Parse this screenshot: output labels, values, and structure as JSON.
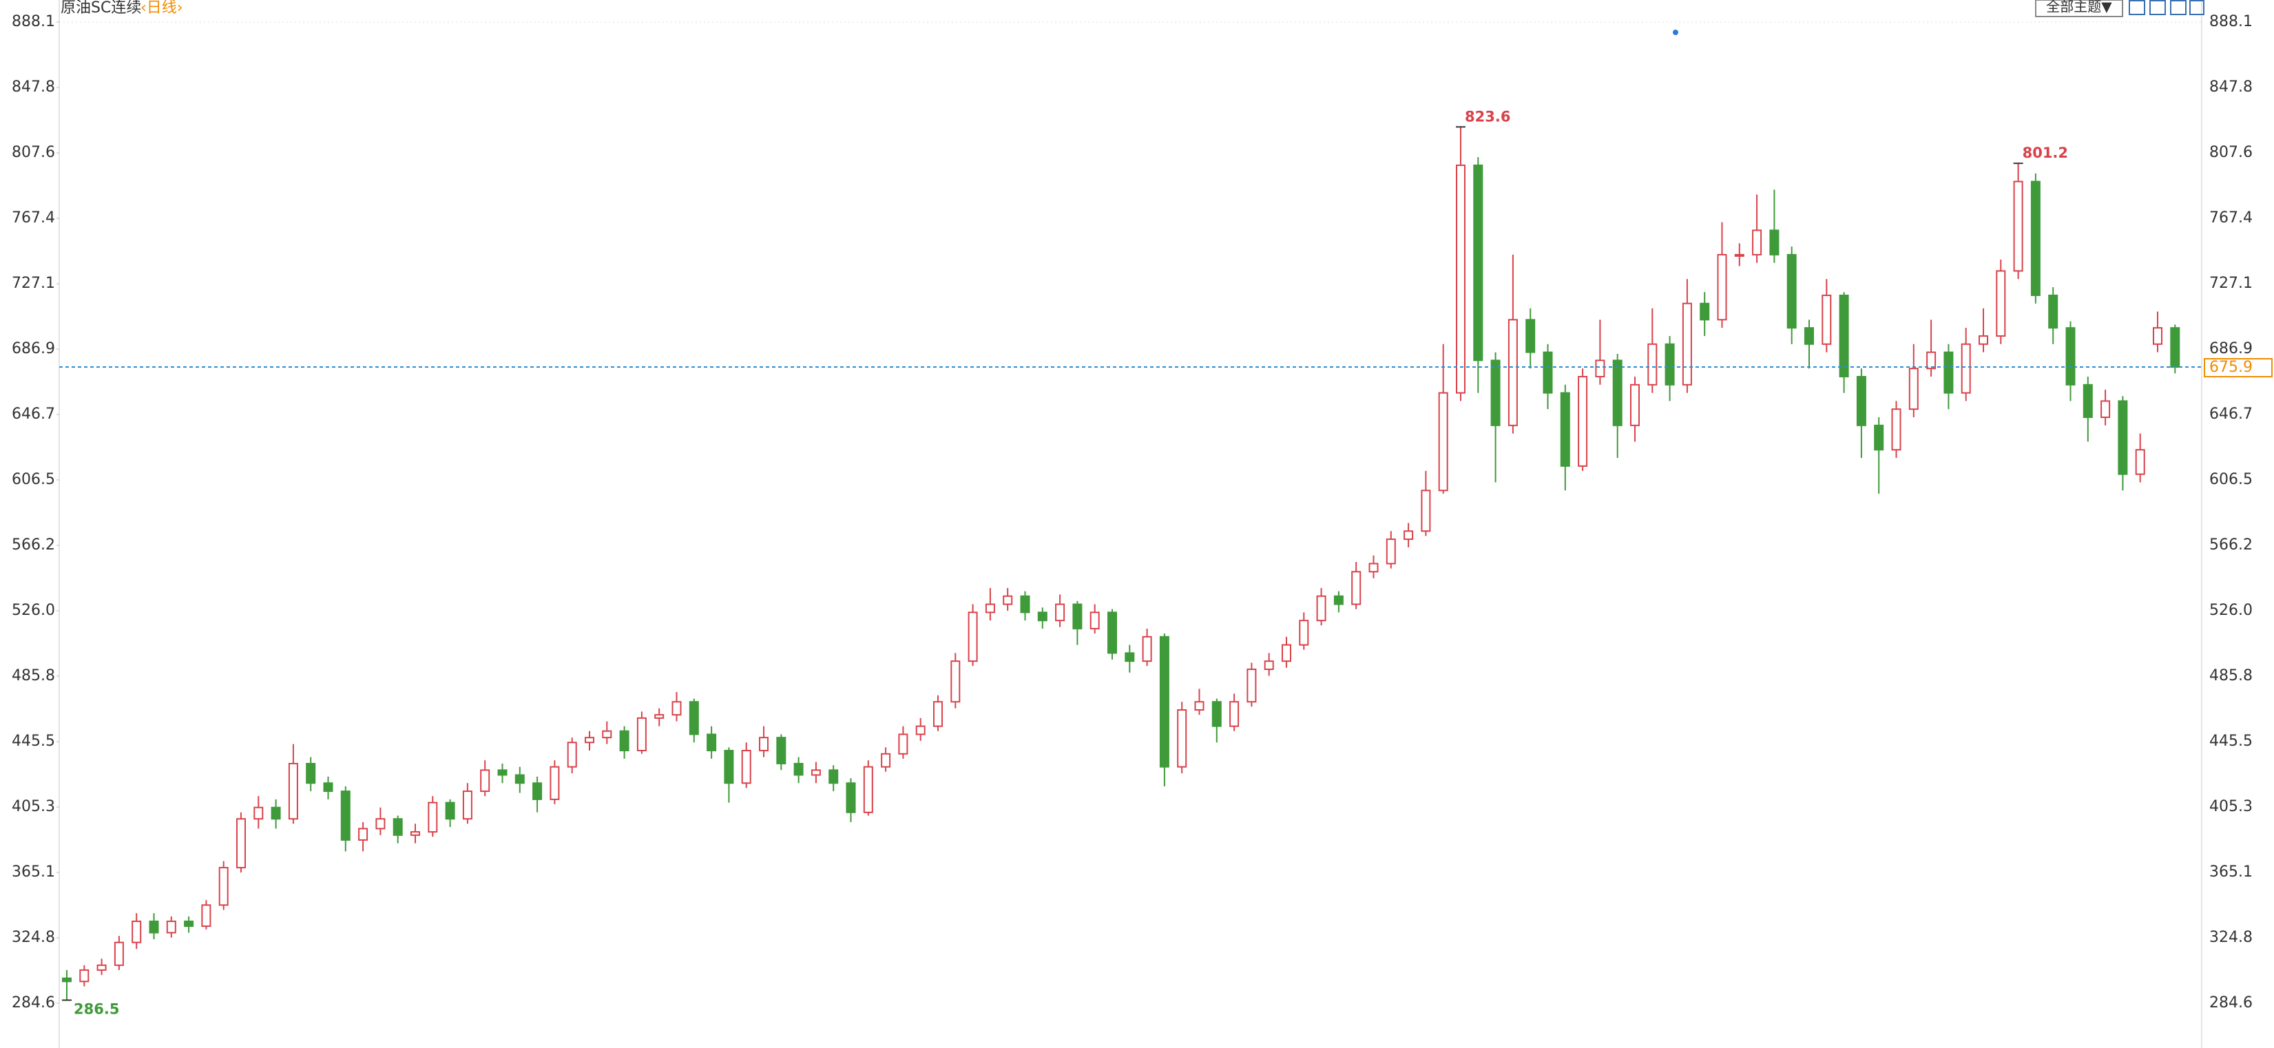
{
  "chart_data": {
    "type": "candlestick",
    "title": "原油SC连续",
    "subtitle": "‹日线›",
    "toolbar_button": "全部主题▼",
    "up_color": "#d9414a",
    "down_color": "#3f9a3a",
    "ylim": [
      284.6,
      888.1
    ],
    "yticks": [
      284.6,
      324.8,
      365.1,
      405.3,
      445.5,
      485.8,
      {
        "value": 526,
        "label": "526.0"
      },
      566.2,
      606.5,
      646.7,
      686.9,
      727.1,
      767.4,
      807.6,
      847.8,
      888.1
    ],
    "last_price": 675.9,
    "marked_highs": [
      823.6,
      801.2
    ],
    "marked_low": 286.5,
    "ohlc": [
      [
        300,
        305,
        286.5,
        298
      ],
      [
        298,
        308,
        295,
        305
      ],
      [
        305,
        312,
        302,
        308
      ],
      [
        308,
        326,
        305,
        322
      ],
      [
        322,
        340,
        318,
        335
      ],
      [
        335,
        340,
        324,
        328
      ],
      [
        328,
        338,
        325,
        335
      ],
      [
        335,
        338,
        328,
        332
      ],
      [
        332,
        348,
        330,
        345
      ],
      [
        345,
        372,
        342,
        368
      ],
      [
        368,
        402,
        365,
        398
      ],
      [
        398,
        412,
        392,
        405
      ],
      [
        405,
        410,
        392,
        398
      ],
      [
        398,
        444,
        395,
        432
      ],
      [
        432,
        436,
        415,
        420
      ],
      [
        420,
        424,
        410,
        415
      ],
      [
        415,
        418,
        378,
        385
      ],
      [
        385,
        396,
        378,
        392
      ],
      [
        392,
        405,
        388,
        398
      ],
      [
        398,
        400,
        383,
        388
      ],
      [
        388,
        395,
        383,
        390
      ],
      [
        390,
        412,
        387,
        408
      ],
      [
        408,
        410,
        393,
        398
      ],
      [
        398,
        420,
        395,
        415
      ],
      [
        415,
        434,
        412,
        428
      ],
      [
        428,
        432,
        420,
        425
      ],
      [
        425,
        430,
        414,
        420
      ],
      [
        420,
        424,
        402,
        410
      ],
      [
        410,
        434,
        407,
        430
      ],
      [
        430,
        448,
        426,
        445
      ],
      [
        445,
        452,
        440,
        448
      ],
      [
        448,
        458,
        444,
        452
      ],
      [
        452,
        455,
        435,
        440
      ],
      [
        440,
        464,
        438,
        460
      ],
      [
        460,
        466,
        455,
        462
      ],
      [
        462,
        476,
        458,
        470
      ],
      [
        470,
        472,
        445,
        450
      ],
      [
        450,
        455,
        435,
        440
      ],
      [
        440,
        442,
        408,
        420
      ],
      [
        420,
        445,
        417,
        440
      ],
      [
        440,
        455,
        436,
        448
      ],
      [
        448,
        450,
        428,
        432
      ],
      [
        432,
        436,
        420,
        425
      ],
      [
        425,
        433,
        420,
        428
      ],
      [
        428,
        431,
        415,
        420
      ],
      [
        420,
        423,
        396,
        402
      ],
      [
        402,
        434,
        400,
        430
      ],
      [
        430,
        442,
        427,
        438
      ],
      [
        438,
        455,
        435,
        450
      ],
      [
        450,
        460,
        446,
        455
      ],
      [
        455,
        474,
        452,
        470
      ],
      [
        470,
        500,
        466,
        495
      ],
      [
        495,
        530,
        492,
        525
      ],
      [
        525,
        540,
        520,
        530
      ],
      [
        530,
        540,
        526,
        535
      ],
      [
        535,
        538,
        520,
        525
      ],
      [
        525,
        528,
        515,
        520
      ],
      [
        520,
        536,
        516,
        530
      ],
      [
        530,
        532,
        505,
        515
      ],
      [
        515,
        530,
        512,
        525
      ],
      [
        525,
        527,
        496,
        500
      ],
      [
        500,
        505,
        488,
        495
      ],
      [
        495,
        515,
        492,
        510
      ],
      [
        510,
        512,
        418,
        430
      ],
      [
        430,
        470,
        426,
        465
      ],
      [
        465,
        478,
        462,
        470
      ],
      [
        470,
        472,
        445,
        455
      ],
      [
        455,
        475,
        452,
        470
      ],
      [
        470,
        494,
        467,
        490
      ],
      [
        490,
        500,
        486,
        495
      ],
      [
        495,
        510,
        491,
        505
      ],
      [
        505,
        525,
        502,
        520
      ],
      [
        520,
        540,
        517,
        535
      ],
      [
        535,
        538,
        525,
        530
      ],
      [
        530,
        556,
        527,
        550
      ],
      [
        550,
        560,
        546,
        555
      ],
      [
        555,
        575,
        552,
        570
      ],
      [
        570,
        580,
        565,
        575
      ],
      [
        575,
        612,
        572,
        600
      ],
      [
        600,
        690,
        598,
        660
      ],
      [
        660,
        823.6,
        655,
        800
      ],
      [
        800,
        805,
        660,
        680
      ],
      [
        680,
        685,
        605,
        640
      ],
      [
        640,
        745,
        635,
        705
      ],
      [
        705,
        712,
        675,
        685
      ],
      [
        685,
        690,
        650,
        660
      ],
      [
        660,
        665,
        600,
        615
      ],
      [
        615,
        675,
        612,
        670
      ],
      [
        670,
        705,
        665,
        680
      ],
      [
        680,
        684,
        620,
        640
      ],
      [
        640,
        670,
        630,
        665
      ],
      [
        665,
        712,
        660,
        690
      ],
      [
        690,
        695,
        655,
        665
      ],
      [
        665,
        730,
        660,
        715
      ],
      [
        715,
        722,
        695,
        705
      ],
      [
        705,
        765,
        700,
        745
      ],
      [
        745,
        752,
        738,
        745
      ],
      [
        745,
        782,
        740,
        760
      ],
      [
        760,
        785,
        740,
        745
      ],
      [
        745,
        750,
        690,
        700
      ],
      [
        700,
        705,
        675,
        690
      ],
      [
        690,
        730,
        685,
        720
      ],
      [
        720,
        722,
        660,
        670
      ],
      [
        670,
        675,
        620,
        640
      ],
      [
        640,
        645,
        598,
        625
      ],
      [
        625,
        655,
        620,
        650
      ],
      [
        650,
        690,
        645,
        675
      ],
      [
        675,
        705,
        670,
        685
      ],
      [
        685,
        690,
        650,
        660
      ],
      [
        660,
        700,
        655,
        690
      ],
      [
        690,
        712,
        685,
        695
      ],
      [
        695,
        742,
        690,
        735
      ],
      [
        735,
        801.2,
        730,
        790
      ],
      [
        790,
        795,
        715,
        720
      ],
      [
        720,
        725,
        690,
        700
      ],
      [
        700,
        704,
        655,
        665
      ],
      [
        665,
        670,
        630,
        645
      ],
      [
        645,
        662,
        640,
        655
      ],
      [
        655,
        658,
        600,
        610
      ],
      [
        610,
        635,
        605,
        625
      ],
      [
        690,
        710,
        685,
        700
      ],
      [
        700,
        702,
        672,
        675.9
      ]
    ]
  }
}
